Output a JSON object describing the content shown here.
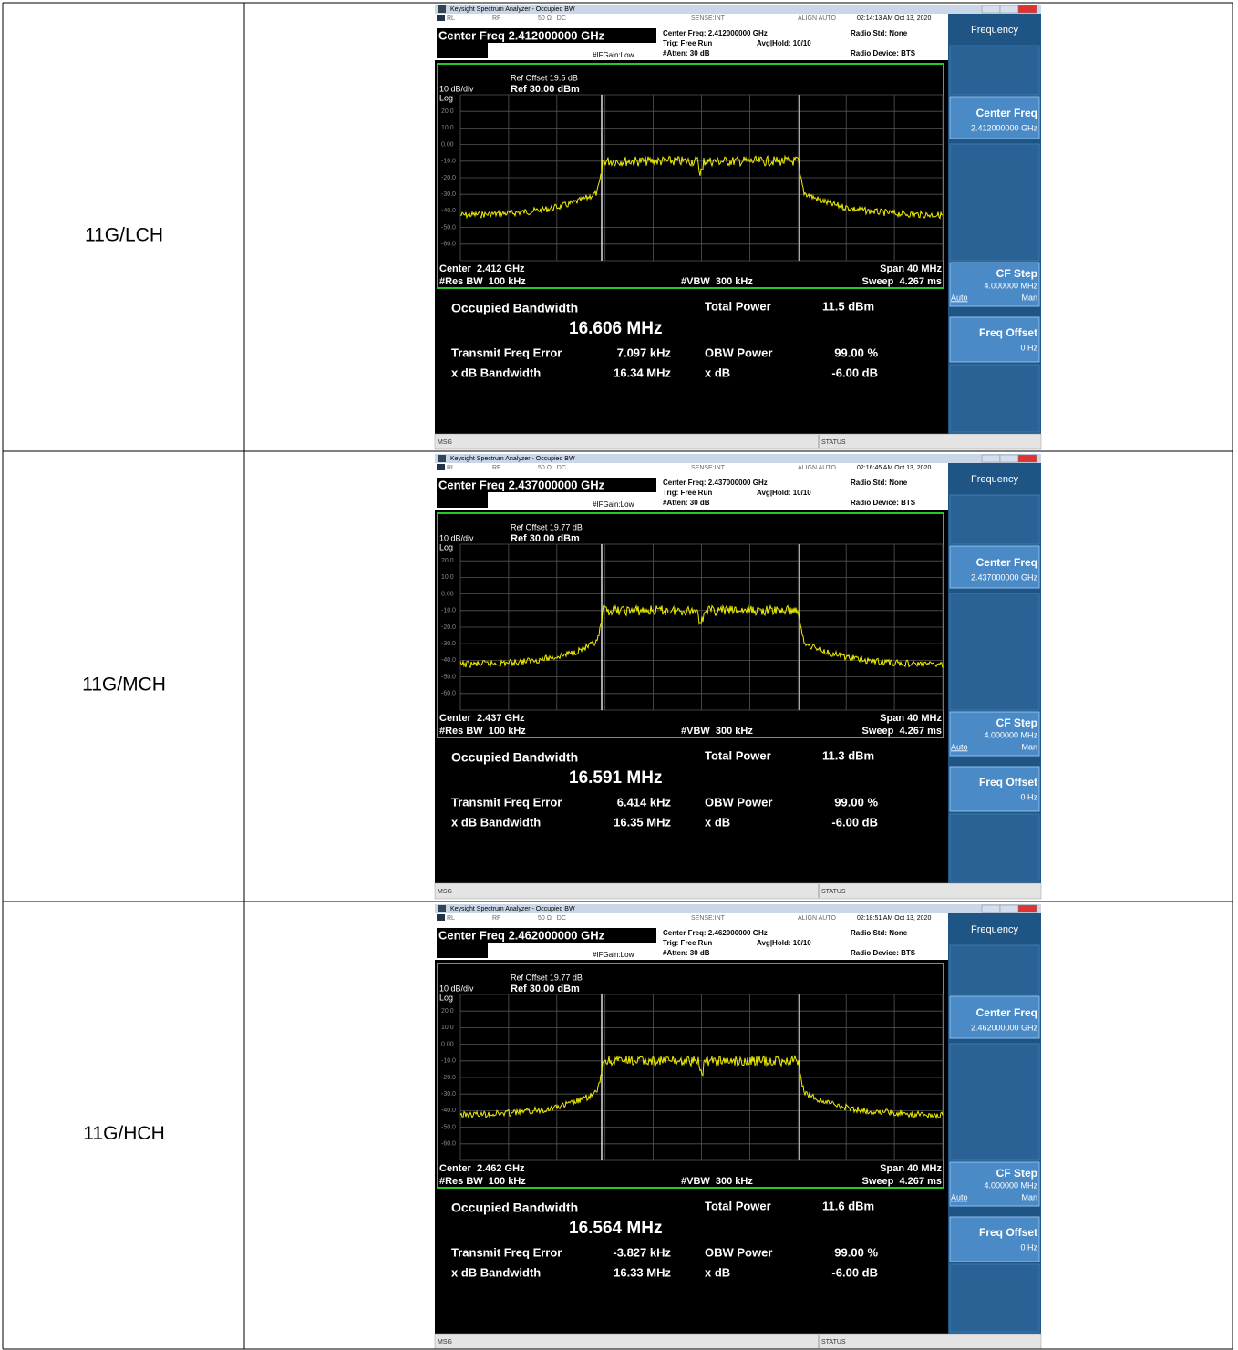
{
  "rows": [
    {
      "label": "11G/LCH",
      "analyzer": {
        "window_title": "Keysight Spectrum Analyzer - Occupied BW",
        "status_bar": [
          "RL",
          "RF",
          "50 Ω   DC",
          "SENSE:INT",
          "ALIGN AUTO",
          "02:14:13 AM Oct 13, 2020"
        ],
        "center_freq_header": "Center Freq 2.412000000 GHz",
        "settings": {
          "center_freq": "Center Freq: 2.412000000 GHz",
          "trig": "Trig: Free Run",
          "avg_hold": "Avg|Hold: 10/10",
          "atten": "#Atten: 30 dB",
          "if_gain": "#IFGain:Low",
          "radio_std": "Radio Std: None",
          "radio_device": "Radio Device: BTS"
        },
        "ref_offset": "Ref Offset 19.5 dB",
        "scale": "10 dB/div",
        "ref_level": "Ref 30.00 dBm",
        "log": "Log",
        "y_labels": [
          "20.0",
          "10.0",
          "0.00",
          "-10.0",
          "-20.0",
          "-30.0",
          "-40.0",
          "-50.0",
          "-60.0"
        ],
        "center": "Center  2.412 GHz",
        "res_bw": "#Res BW  100 kHz",
        "vbw": "#VBW  300 kHz",
        "span": "Span 40 MHz",
        "sweep": "Sweep  4.267 ms",
        "results": {
          "obw_label": "Occupied Bandwidth",
          "obw": "16.606 MHz",
          "total_power_label": "Total Power",
          "total_power": "11.5 dBm",
          "freq_error_label": "Transmit Freq Error",
          "freq_error": "7.097 kHz",
          "obw_power_label": "OBW Power",
          "obw_power": "99.00 %",
          "xdb_bw_label": "x dB Bandwidth",
          "xdb_bw": "16.34 MHz",
          "xdb_label": "x dB",
          "xdb": "-6.00 dB"
        },
        "softkeys": {
          "menu": "Frequency",
          "center_freq_label": "Center Freq",
          "center_freq_value": "2.412000000 GHz",
          "cf_step_label": "CF Step",
          "cf_step_value": "4.000000 MHz",
          "auto": "Auto",
          "man": "Man",
          "freq_offset_label": "Freq Offset",
          "freq_offset_value": "0 Hz"
        },
        "msg": "MSG",
        "status": "STATUS"
      }
    },
    {
      "label": "11G/MCH",
      "analyzer": {
        "window_title": "Keysight Spectrum Analyzer - Occupied BW",
        "status_bar": [
          "RL",
          "RF",
          "50 Ω   DC",
          "SENSE:INT",
          "ALIGN AUTO",
          "02:16:45 AM Oct 13, 2020"
        ],
        "center_freq_header": "Center Freq 2.437000000 GHz",
        "settings": {
          "center_freq": "Center Freq: 2.437000000 GHz",
          "trig": "Trig: Free Run",
          "avg_hold": "Avg|Hold: 10/10",
          "atten": "#Atten: 30 dB",
          "if_gain": "#IFGain:Low",
          "radio_std": "Radio Std: None",
          "radio_device": "Radio Device: BTS"
        },
        "ref_offset": "Ref Offset 19.77 dB",
        "scale": "10 dB/div",
        "ref_level": "Ref 30.00 dBm",
        "log": "Log",
        "y_labels": [
          "20.0",
          "10.0",
          "0.00",
          "-10.0",
          "-20.0",
          "-30.0",
          "-40.0",
          "-50.0",
          "-60.0"
        ],
        "center": "Center  2.437 GHz",
        "res_bw": "#Res BW  100 kHz",
        "vbw": "#VBW  300 kHz",
        "span": "Span 40 MHz",
        "sweep": "Sweep  4.267 ms",
        "results": {
          "obw_label": "Occupied Bandwidth",
          "obw": "16.591 MHz",
          "total_power_label": "Total Power",
          "total_power": "11.3 dBm",
          "freq_error_label": "Transmit Freq Error",
          "freq_error": "6.414 kHz",
          "obw_power_label": "OBW Power",
          "obw_power": "99.00 %",
          "xdb_bw_label": "x dB Bandwidth",
          "xdb_bw": "16.35 MHz",
          "xdb_label": "x dB",
          "xdb": "-6.00 dB"
        },
        "softkeys": {
          "menu": "Frequency",
          "center_freq_label": "Center Freq",
          "center_freq_value": "2.437000000 GHz",
          "cf_step_label": "CF Step",
          "cf_step_value": "4.000000 MHz",
          "auto": "Auto",
          "man": "Man",
          "freq_offset_label": "Freq Offset",
          "freq_offset_value": "0 Hz"
        },
        "msg": "MSG",
        "status": "STATUS"
      }
    },
    {
      "label": "11G/HCH",
      "analyzer": {
        "window_title": "Keysight Spectrum Analyzer - Occupied BW",
        "status_bar": [
          "RL",
          "RF",
          "50 Ω   DC",
          "SENSE:INT",
          "ALIGN AUTO",
          "02:18:51 AM Oct 13, 2020"
        ],
        "center_freq_header": "Center Freq 2.462000000 GHz",
        "settings": {
          "center_freq": "Center Freq: 2.462000000 GHz",
          "trig": "Trig: Free Run",
          "avg_hold": "Avg|Hold: 10/10",
          "atten": "#Atten: 30 dB",
          "if_gain": "#IFGain:Low",
          "radio_std": "Radio Std: None",
          "radio_device": "Radio Device: BTS"
        },
        "ref_offset": "Ref Offset 19.77 dB",
        "scale": "10 dB/div",
        "ref_level": "Ref 30.00 dBm",
        "log": "Log",
        "y_labels": [
          "20.0",
          "10.0",
          "0.00",
          "-10.0",
          "-20.0",
          "-30.0",
          "-40.0",
          "-50.0",
          "-60.0"
        ],
        "center": "Center  2.462 GHz",
        "res_bw": "#Res BW  100 kHz",
        "vbw": "#VBW  300 kHz",
        "span": "Span 40 MHz",
        "sweep": "Sweep  4.267 ms",
        "results": {
          "obw_label": "Occupied Bandwidth",
          "obw": "16.564 MHz",
          "total_power_label": "Total Power",
          "total_power": "11.6 dBm",
          "freq_error_label": "Transmit Freq Error",
          "freq_error": "-3.827 kHz",
          "obw_power_label": "OBW Power",
          "obw_power": "99.00 %",
          "xdb_bw_label": "x dB Bandwidth",
          "xdb_bw": "16.33 MHz",
          "xdb_label": "x dB",
          "xdb": "-6.00 dB"
        },
        "softkeys": {
          "menu": "Frequency",
          "center_freq_label": "Center Freq",
          "center_freq_value": "2.462000000 GHz",
          "cf_step_label": "CF Step",
          "cf_step_value": "4.000000 MHz",
          "auto": "Auto",
          "man": "Man",
          "freq_offset_label": "Freq Offset",
          "freq_offset_value": "0 Hz"
        },
        "msg": "MSG",
        "status": "STATUS"
      }
    }
  ]
}
